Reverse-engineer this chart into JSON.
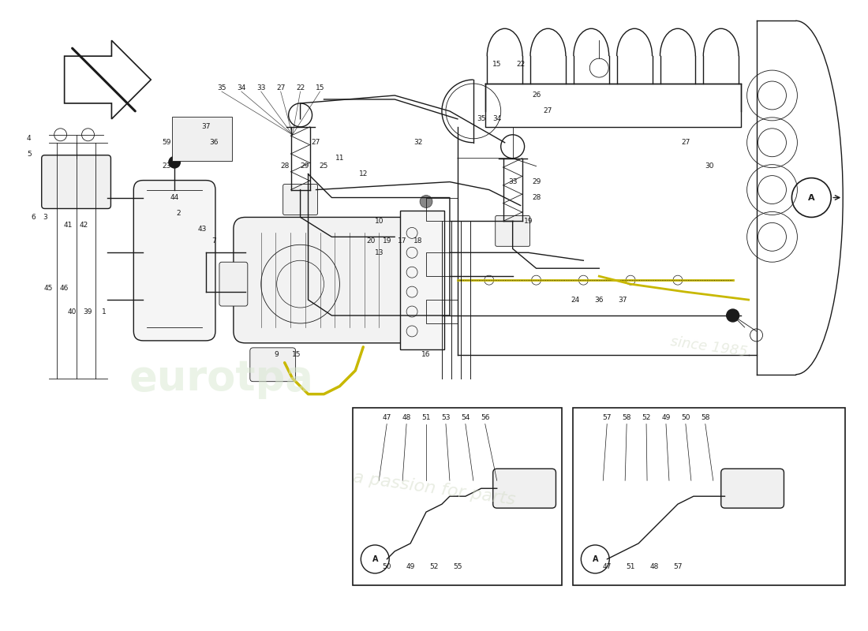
{
  "bg_color": "#ffffff",
  "line_color": "#1a1a1a",
  "wm1": "eurotpa",
  "wm2": "a passion for parts",
  "wm3": "since 1985",
  "figsize": [
    11.0,
    8.0
  ],
  "dpi": 100
}
